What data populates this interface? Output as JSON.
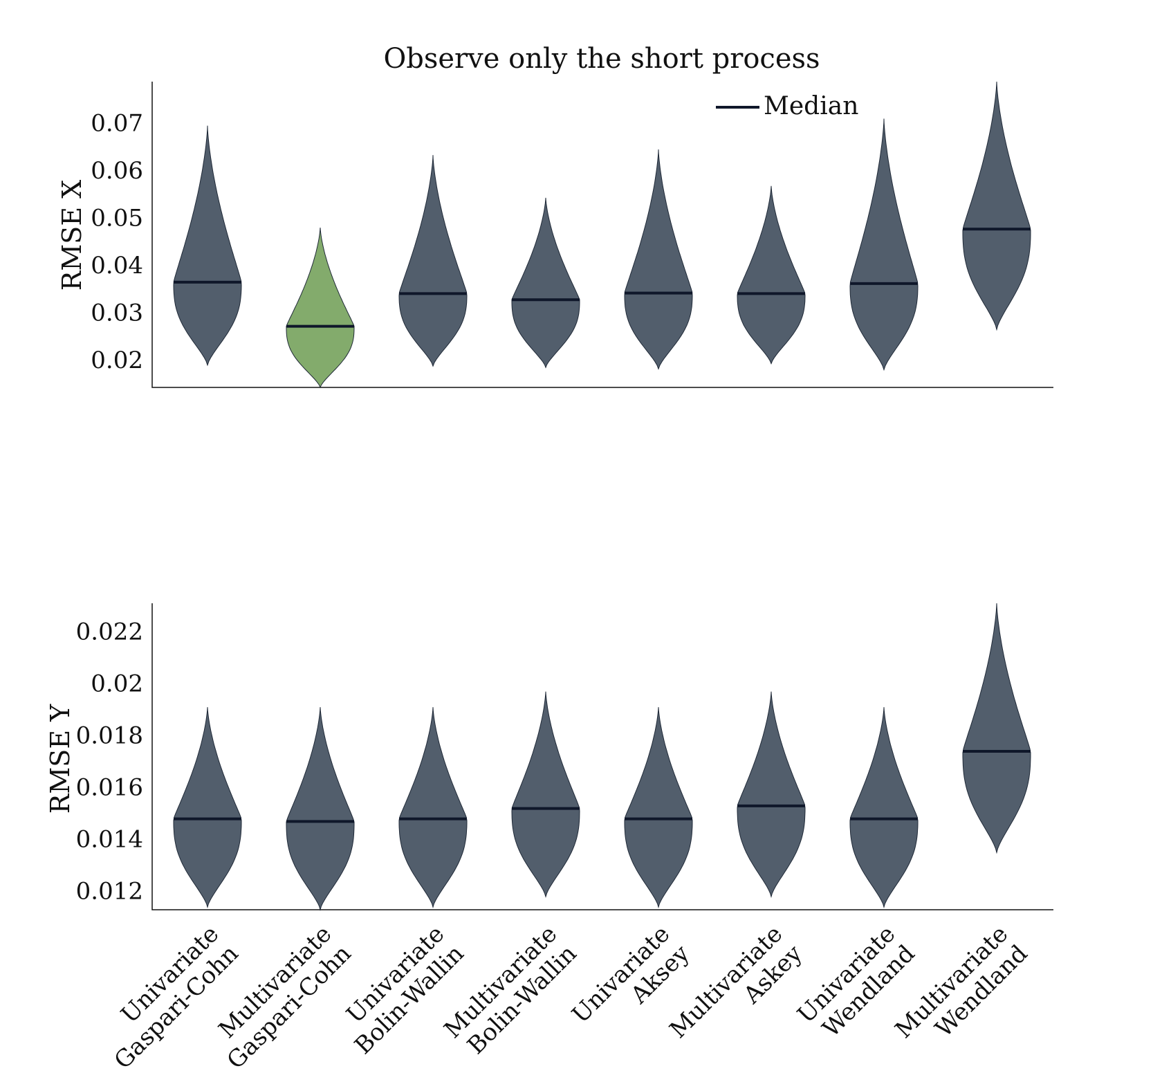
{
  "title": "Observe only the short process",
  "legend": {
    "label": "Median",
    "placement": "top-right",
    "color": "#0f172a"
  },
  "colors": {
    "violin": "#525e6c",
    "highlight": "#83ab6c",
    "outline": "#1f2937",
    "median": "#0f172a"
  },
  "chart_data": [
    {
      "type": "violin",
      "ylabel": "RMSE X",
      "ylim": [
        0.0143,
        0.0788
      ],
      "yticks": [
        "0.02",
        "0.03",
        "0.04",
        "0.05",
        "0.06",
        "0.07"
      ],
      "ytick_values": [
        0.02,
        0.03,
        0.04,
        0.05,
        0.06,
        0.07
      ],
      "categories": [
        "Univariate Gaspari-Cohn",
        "Multivariate Gaspari-Cohn",
        "Univariate Bolin-Wallin",
        "Multivariate Bolin-Wallin",
        "Univariate Aksey",
        "Multivariate Askey",
        "Univariate Wendland",
        "Multivariate Wendland"
      ],
      "highlighted": [
        1
      ],
      "series": [
        {
          "min": 0.019,
          "max": 0.0695,
          "median": 0.0365
        },
        {
          "min": 0.0143,
          "max": 0.048,
          "median": 0.0272
        },
        {
          "min": 0.0188,
          "max": 0.0633,
          "median": 0.0341
        },
        {
          "min": 0.0185,
          "max": 0.0543,
          "median": 0.0328
        },
        {
          "min": 0.0182,
          "max": 0.0645,
          "median": 0.0342
        },
        {
          "min": 0.0193,
          "max": 0.0568,
          "median": 0.0341
        },
        {
          "min": 0.018,
          "max": 0.071,
          "median": 0.0362
        },
        {
          "min": 0.0265,
          "max": 0.0788,
          "median": 0.0477
        }
      ]
    },
    {
      "type": "violin",
      "ylabel": "RMSE Y",
      "ylim": [
        0.0113,
        0.0231
      ],
      "yticks": [
        "0.012",
        "0.014",
        "0.016",
        "0.018",
        "0.02",
        "0.022"
      ],
      "ytick_values": [
        0.012,
        0.014,
        0.016,
        0.018,
        0.02,
        0.022
      ],
      "categories": [
        "Univariate Gaspari-Cohn",
        "Multivariate Gaspari-Cohn",
        "Univariate Bolin-Wallin",
        "Multivariate Bolin-Wallin",
        "Univariate Aksey",
        "Multivariate Askey",
        "Univariate Wendland",
        "Multivariate Wendland"
      ],
      "highlighted": [],
      "series": [
        {
          "min": 0.0114,
          "max": 0.0191,
          "median": 0.0148
        },
        {
          "min": 0.0113,
          "max": 0.0191,
          "median": 0.0147
        },
        {
          "min": 0.0114,
          "max": 0.0191,
          "median": 0.0148
        },
        {
          "min": 0.0118,
          "max": 0.0197,
          "median": 0.0152
        },
        {
          "min": 0.0114,
          "max": 0.0191,
          "median": 0.0148
        },
        {
          "min": 0.0118,
          "max": 0.0197,
          "median": 0.0153
        },
        {
          "min": 0.0114,
          "max": 0.0191,
          "median": 0.0148
        },
        {
          "min": 0.0135,
          "max": 0.0231,
          "median": 0.0174
        }
      ]
    }
  ],
  "category_labels": [
    [
      "Univariate",
      "Gaspari-Cohn"
    ],
    [
      "Multivariate",
      "Gaspari-Cohn"
    ],
    [
      "Univariate",
      "Bolin-Wallin"
    ],
    [
      "Multivariate",
      "Bolin-Wallin"
    ],
    [
      "Univariate",
      "Aksey"
    ],
    [
      "Multivariate",
      "Askey"
    ],
    [
      "Univariate",
      "Wendland"
    ],
    [
      "Multivariate",
      "Wendland"
    ]
  ]
}
